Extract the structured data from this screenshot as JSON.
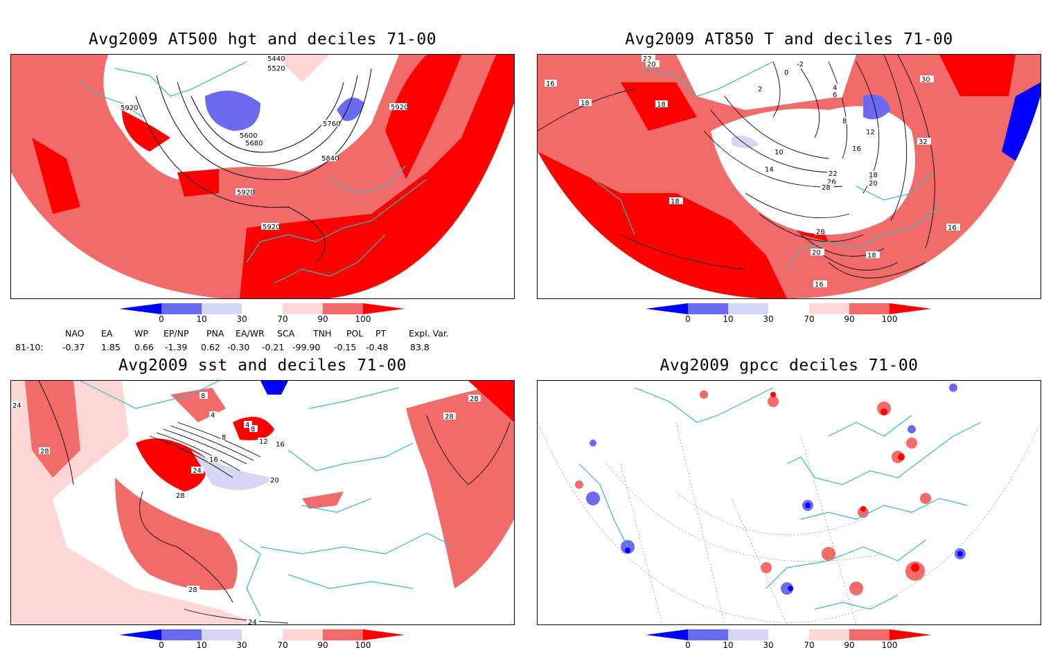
{
  "panels": [
    {
      "title": "Avg2009 AT500 hgt and deciles 71-00",
      "contour_labels": [
        "5440",
        "5520",
        "5920",
        "5600",
        "5680",
        "5760",
        "5840",
        "5920",
        "5920",
        "5920"
      ]
    },
    {
      "title": "Avg2009 AT850 T and deciles 71-00",
      "contour_labels": [
        "22",
        "20",
        "16",
        "18",
        "18",
        "-2",
        "0",
        "2",
        "4",
        "6",
        "8",
        "10",
        "12",
        "14",
        "16",
        "18",
        "20",
        "22",
        "26",
        "28",
        "30",
        "32",
        "18",
        "16",
        "26",
        "20",
        "18",
        "16"
      ]
    },
    {
      "title": "Avg2009 sst and deciles 71-00",
      "contour_labels": [
        "24",
        "28",
        "8",
        "4",
        "8",
        "4",
        "8",
        "12",
        "16",
        "20",
        "16",
        "24",
        "28",
        "28",
        "28",
        "24",
        "28"
      ]
    },
    {
      "title": "Avg2009 gpcc deciles 71-00",
      "contour_labels": []
    }
  ],
  "colorbar": {
    "ticks": [
      "0",
      "10",
      "30",
      "70",
      "90",
      "100"
    ],
    "colors": [
      "#0000ff",
      "#6b6bf2",
      "#d6d6f7",
      "#ffffff",
      "#ffd6d6",
      "#f26b6b",
      "#ff0000"
    ]
  },
  "indices": {
    "headers": [
      "NAO",
      "EA",
      "WP",
      "EP/NP",
      "PNA",
      "EA/WR",
      "SCA",
      "TNH",
      "POL",
      "PT",
      "Expl. Var."
    ],
    "row_label": "81-10:",
    "values": [
      "-0.37",
      "1.85",
      "0.66",
      "-1.39",
      "0.62",
      "-0.30",
      "-0.21",
      "-99.90",
      "-0.15",
      "-0.48",
      "83.8"
    ]
  }
}
